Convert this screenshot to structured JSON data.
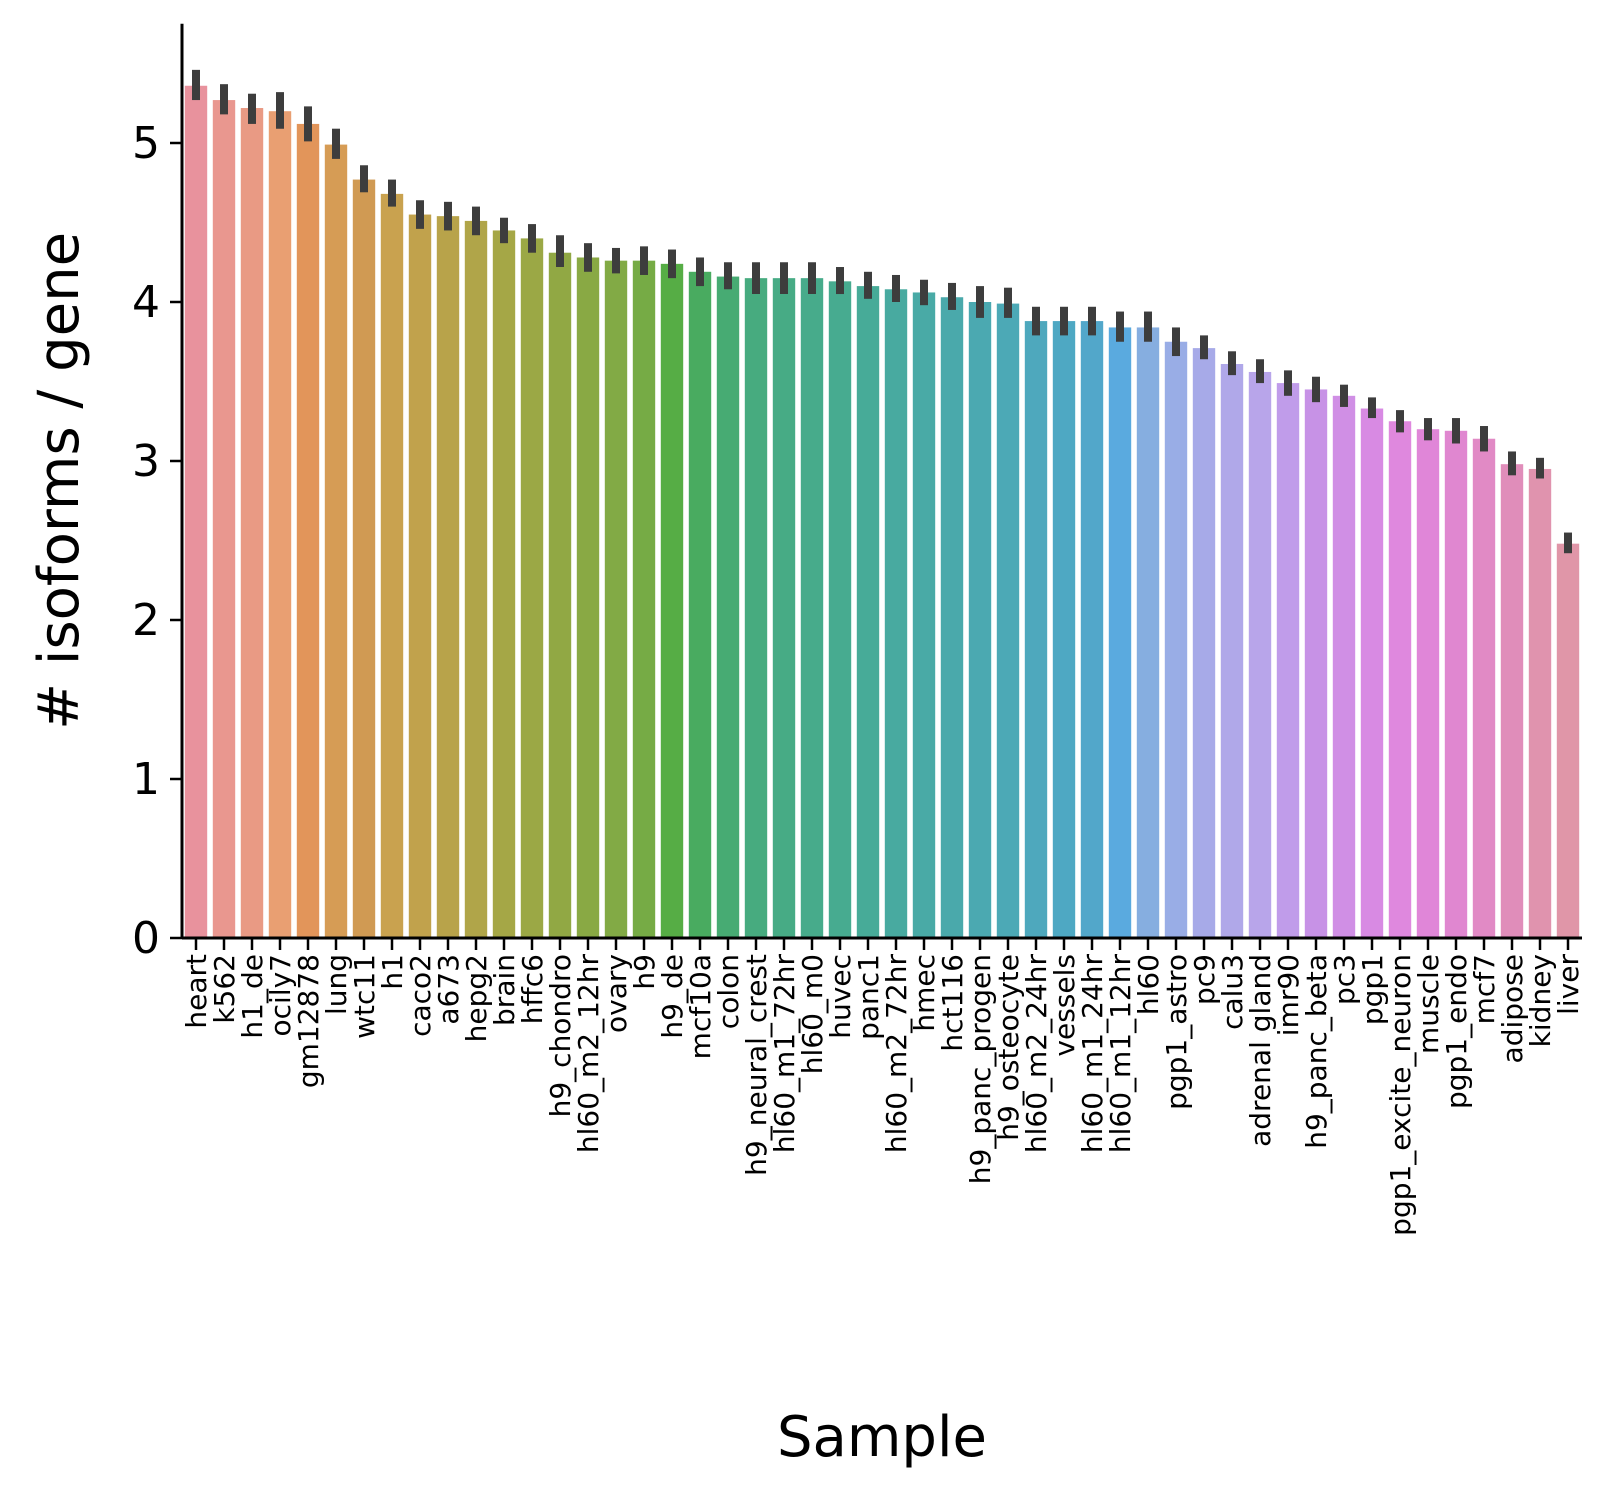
{
  "chart_data": {
    "type": "bar",
    "xlabel": "Sample",
    "ylabel": "# isoforms / gene",
    "ylim": [
      0,
      5.75
    ],
    "yticks": [
      0,
      1,
      2,
      3,
      4,
      5
    ],
    "grid": false,
    "categories": [
      "heart",
      "k562",
      "h1_de",
      "ocily7",
      "gm12878",
      "lung",
      "wtc11",
      "h1",
      "caco2",
      "a673",
      "hepg2",
      "brain",
      "hffc6",
      "h9_chondro",
      "hl60_m2_12hr",
      "ovary",
      "h9",
      "h9_de",
      "mcf10a",
      "colon",
      "h9_neural_crest",
      "hl60_m1_72hr",
      "hl60_m0",
      "huvec",
      "panc1",
      "hl60_m2_72hr",
      "hmec",
      "hct116",
      "h9_panc_progen",
      "h9_osteocyte",
      "hl60_m2_24hr",
      "vessels",
      "hl60_m1_24hr",
      "hl60_m1_12hr",
      "hl60",
      "pgp1_astro",
      "pc9",
      "calu3",
      "adrenal gland",
      "imr90",
      "h9_panc_beta",
      "pc3",
      "pgp1",
      "pgp1_excite_neuron",
      "muscle",
      "pgp1_endo",
      "mcf7",
      "adipose",
      "kidney",
      "liver"
    ],
    "values": [
      5.36,
      5.27,
      5.22,
      5.2,
      5.12,
      4.99,
      4.77,
      4.68,
      4.55,
      4.54,
      4.51,
      4.45,
      4.4,
      4.31,
      4.28,
      4.26,
      4.26,
      4.24,
      4.19,
      4.16,
      4.15,
      4.15,
      4.15,
      4.13,
      4.1,
      4.08,
      4.06,
      4.03,
      4.0,
      3.99,
      3.88,
      3.88,
      3.88,
      3.84,
      3.84,
      3.75,
      3.71,
      3.61,
      3.56,
      3.49,
      3.45,
      3.41,
      3.33,
      3.25,
      3.2,
      3.19,
      3.14,
      2.98,
      2.95,
      2.48
    ],
    "error_bars": [
      [
        5.27,
        5.46
      ],
      [
        5.18,
        5.37
      ],
      [
        5.12,
        5.31
      ],
      [
        5.09,
        5.32
      ],
      [
        5.01,
        5.23
      ],
      [
        4.9,
        5.09
      ],
      [
        4.69,
        4.86
      ],
      [
        4.6,
        4.77
      ],
      [
        4.46,
        4.64
      ],
      [
        4.45,
        4.63
      ],
      [
        4.42,
        4.6
      ],
      [
        4.37,
        4.53
      ],
      [
        4.31,
        4.49
      ],
      [
        4.22,
        4.42
      ],
      [
        4.19,
        4.37
      ],
      [
        4.18,
        4.34
      ],
      [
        4.17,
        4.35
      ],
      [
        4.15,
        4.33
      ],
      [
        4.1,
        4.28
      ],
      [
        4.08,
        4.25
      ],
      [
        4.05,
        4.25
      ],
      [
        4.05,
        4.25
      ],
      [
        4.05,
        4.25
      ],
      [
        4.05,
        4.22
      ],
      [
        4.02,
        4.19
      ],
      [
        4.0,
        4.17
      ],
      [
        3.98,
        4.14
      ],
      [
        3.95,
        4.12
      ],
      [
        3.9,
        4.1
      ],
      [
        3.9,
        4.09
      ],
      [
        3.79,
        3.97
      ],
      [
        3.79,
        3.97
      ],
      [
        3.79,
        3.97
      ],
      [
        3.75,
        3.94
      ],
      [
        3.75,
        3.94
      ],
      [
        3.66,
        3.84
      ],
      [
        3.64,
        3.79
      ],
      [
        3.54,
        3.69
      ],
      [
        3.49,
        3.64
      ],
      [
        3.41,
        3.57
      ],
      [
        3.37,
        3.53
      ],
      [
        3.34,
        3.48
      ],
      [
        3.27,
        3.4
      ],
      [
        3.18,
        3.32
      ],
      [
        3.13,
        3.27
      ],
      [
        3.11,
        3.27
      ],
      [
        3.06,
        3.22
      ],
      [
        2.91,
        3.06
      ],
      [
        2.89,
        3.02
      ],
      [
        2.42,
        2.55
      ]
    ],
    "colors": [
      "#e8929d",
      "#e9978f",
      "#e99a84",
      "#e99f72",
      "#e2955a",
      "#d69c55",
      "#d09a53",
      "#c9a24f",
      "#c1a24c",
      "#b8a34a",
      "#b0a549",
      "#a5a746",
      "#9ba845",
      "#91a844",
      "#89a944",
      "#82aa45",
      "#76ab45",
      "#56ad45",
      "#49ab60",
      "#47ab73",
      "#47ab7f",
      "#47ab85",
      "#47ab8b",
      "#47ab90",
      "#47ab98",
      "#48aaa0",
      "#49aaa6",
      "#4aa9ab",
      "#4ba9b1",
      "#4ca9b6",
      "#4ea8bd",
      "#4ea8c3",
      "#52a7ca",
      "#5aaadf",
      "#86aee0",
      "#99ade6",
      "#a7aae8",
      "#b0a8e9",
      "#b8a5ea",
      "#c09cea",
      "#c792e6",
      "#d08fe5",
      "#d88ae3",
      "#df88de",
      "#e086d8",
      "#e087d0",
      "#e18ac5",
      "#e08dba",
      "#e093ae",
      "#e096a8"
    ]
  }
}
